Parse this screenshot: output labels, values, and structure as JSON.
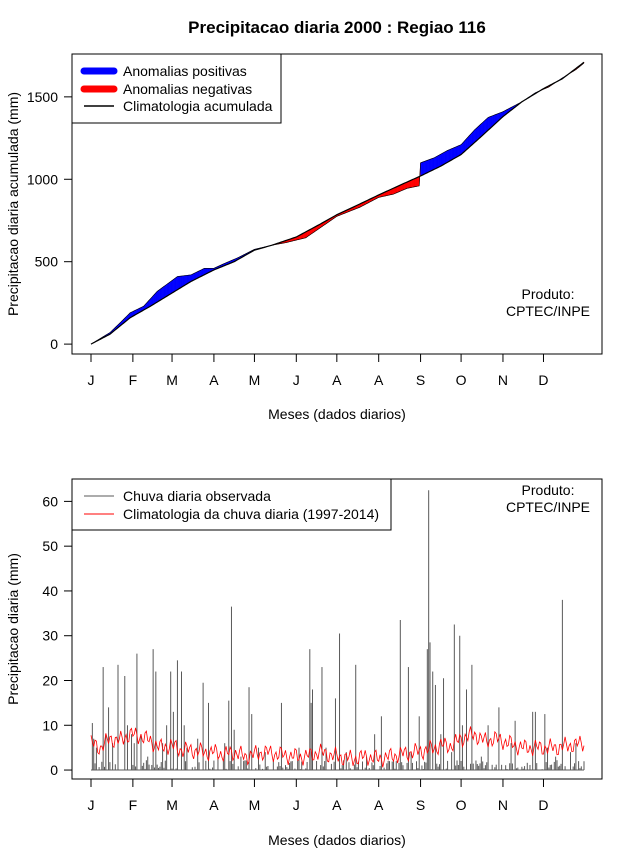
{
  "chart_data": [
    {
      "type": "area",
      "title": "Precipitacao diaria 2000 : Regiao 116",
      "xlabel": "Meses (dados diarios)",
      "ylabel": "Precipitacao diaria acumulada (mm)",
      "ylim": [
        -60,
        1760
      ],
      "yticks": [
        0,
        500,
        1000,
        1500
      ],
      "xlim": [
        1,
        366
      ],
      "month_ticks": [
        {
          "label": "J",
          "day": 1
        },
        {
          "label": "F",
          "day": 32
        },
        {
          "label": "M",
          "day": 61
        },
        {
          "label": "A",
          "day": 92
        },
        {
          "label": "M",
          "day": 122
        },
        {
          "label": "J",
          "day": 153
        },
        {
          "label": "A",
          "day": 183
        },
        {
          "label": "A",
          "day": 214
        },
        {
          "label": "S",
          "day": 245
        },
        {
          "label": "O",
          "day": 275
        },
        {
          "label": "N",
          "day": 306
        },
        {
          "label": "D",
          "day": 336
        }
      ],
      "legend": [
        {
          "label": "Anomalias positivas",
          "color": "#0000ff"
        },
        {
          "label": "Anomalias negativas",
          "color": "#ff0000"
        },
        {
          "label": "Climatologia acumulada",
          "color": "#000000"
        }
      ],
      "annotation": [
        "Produto:",
        "CPTEC/INPE"
      ],
      "climatology_knots": [
        [
          1,
          0
        ],
        [
          15,
          60
        ],
        [
          30,
          160
        ],
        [
          45,
          230
        ],
        [
          61,
          310
        ],
        [
          75,
          380
        ],
        [
          92,
          450
        ],
        [
          107,
          500
        ],
        [
          122,
          570
        ],
        [
          135,
          600
        ],
        [
          153,
          650
        ],
        [
          170,
          725
        ],
        [
          183,
          785
        ],
        [
          200,
          850
        ],
        [
          214,
          905
        ],
        [
          230,
          965
        ],
        [
          245,
          1020
        ],
        [
          260,
          1080
        ],
        [
          275,
          1150
        ],
        [
          290,
          1260
        ],
        [
          306,
          1380
        ],
        [
          320,
          1470
        ],
        [
          336,
          1550
        ],
        [
          350,
          1610
        ],
        [
          366,
          1710
        ]
      ],
      "observed_knots": [
        [
          1,
          0
        ],
        [
          15,
          70
        ],
        [
          22,
          125
        ],
        [
          30,
          190
        ],
        [
          40,
          230
        ],
        [
          50,
          320
        ],
        [
          60,
          380
        ],
        [
          65,
          410
        ],
        [
          75,
          420
        ],
        [
          85,
          460
        ],
        [
          92,
          460
        ],
        [
          100,
          490
        ],
        [
          110,
          525
        ],
        [
          122,
          575
        ],
        [
          135,
          600
        ],
        [
          145,
          615
        ],
        [
          160,
          645
        ],
        [
          183,
          775
        ],
        [
          200,
          830
        ],
        [
          214,
          890
        ],
        [
          225,
          910
        ],
        [
          235,
          945
        ],
        [
          244,
          960
        ],
        [
          245,
          1100
        ],
        [
          255,
          1130
        ],
        [
          265,
          1175
        ],
        [
          275,
          1210
        ],
        [
          285,
          1300
        ],
        [
          295,
          1375
        ],
        [
          306,
          1410
        ],
        [
          320,
          1470
        ],
        [
          330,
          1525
        ],
        [
          340,
          1560
        ],
        [
          350,
          1615
        ],
        [
          360,
          1665
        ],
        [
          366,
          1705
        ]
      ]
    },
    {
      "type": "line",
      "xlabel": "Meses (dados diarios)",
      "ylabel": "Precipitacao diaria (mm)",
      "ylim": [
        -2,
        65
      ],
      "yticks": [
        0,
        10,
        20,
        30,
        40,
        50,
        60
      ],
      "xlim": [
        1,
        366
      ],
      "legend": [
        {
          "label": "Chuva diaria observada",
          "color": "#595959"
        },
        {
          "label": "Climatologia da chuva diaria (1997-2014)",
          "color": "#ff0000"
        }
      ],
      "annotation": [
        "Produto:",
        "CPTEC/INPE"
      ],
      "observed_peaks": [
        [
          2,
          10.5
        ],
        [
          3,
          7
        ],
        [
          5,
          5
        ],
        [
          10,
          23
        ],
        [
          12,
          8
        ],
        [
          14,
          14
        ],
        [
          17,
          6
        ],
        [
          21,
          23.5
        ],
        [
          26,
          21
        ],
        [
          28,
          10
        ],
        [
          31,
          8
        ],
        [
          33,
          6
        ],
        [
          35,
          26
        ],
        [
          38,
          8
        ],
        [
          43,
          3
        ],
        [
          47,
          27
        ],
        [
          49,
          22
        ],
        [
          54,
          6
        ],
        [
          57,
          10
        ],
        [
          60,
          22
        ],
        [
          62,
          13
        ],
        [
          65,
          24.5
        ],
        [
          68,
          22
        ],
        [
          70,
          10
        ],
        [
          72,
          5
        ],
        [
          80,
          7
        ],
        [
          84,
          19.5
        ],
        [
          88,
          15
        ],
        [
          95,
          3
        ],
        [
          100,
          6
        ],
        [
          103,
          15.5
        ],
        [
          105,
          36.5
        ],
        [
          107,
          9
        ],
        [
          112,
          3
        ],
        [
          118,
          18.5
        ],
        [
          120,
          12.5
        ],
        [
          125,
          5
        ],
        [
          130,
          4
        ],
        [
          136,
          2
        ],
        [
          142,
          15
        ],
        [
          150,
          2
        ],
        [
          155,
          5
        ],
        [
          163,
          27
        ],
        [
          164,
          15
        ],
        [
          165,
          18
        ],
        [
          172,
          23
        ],
        [
          175,
          5
        ],
        [
          182,
          16
        ],
        [
          185,
          30.5
        ],
        [
          190,
          4
        ],
        [
          197,
          23.5
        ],
        [
          205,
          3
        ],
        [
          211,
          8
        ],
        [
          216,
          12
        ],
        [
          222,
          2
        ],
        [
          230,
          33.5
        ],
        [
          236,
          23
        ],
        [
          238,
          4
        ],
        [
          244,
          12
        ],
        [
          250,
          27
        ],
        [
          251,
          62.5
        ],
        [
          252,
          28.5
        ],
        [
          254,
          22
        ],
        [
          256,
          19
        ],
        [
          260,
          8
        ],
        [
          262,
          20.5
        ],
        [
          268,
          4
        ],
        [
          270,
          32.5
        ],
        [
          274,
          30
        ],
        [
          276,
          10
        ],
        [
          279,
          18
        ],
        [
          283,
          23.5
        ],
        [
          290,
          3
        ],
        [
          295,
          10
        ],
        [
          303,
          14
        ],
        [
          312,
          6
        ],
        [
          315,
          11
        ],
        [
          328,
          13
        ],
        [
          330,
          13
        ],
        [
          337,
          12.5
        ],
        [
          339,
          5
        ],
        [
          345,
          3
        ],
        [
          350,
          38
        ],
        [
          356,
          4
        ],
        [
          360,
          6
        ]
      ],
      "climatology_knots": [
        [
          1,
          6
        ],
        [
          8,
          5
        ],
        [
          15,
          7
        ],
        [
          22,
          6.5
        ],
        [
          30,
          8
        ],
        [
          38,
          7.5
        ],
        [
          45,
          6.5
        ],
        [
          52,
          5
        ],
        [
          60,
          5.5
        ],
        [
          68,
          4.5
        ],
        [
          75,
          4.5
        ],
        [
          85,
          4
        ],
        [
          92,
          4
        ],
        [
          100,
          3.5
        ],
        [
          107,
          4
        ],
        [
          115,
          3
        ],
        [
          122,
          3.5
        ],
        [
          130,
          4
        ],
        [
          140,
          3.5
        ],
        [
          153,
          3
        ],
        [
          160,
          3
        ],
        [
          170,
          4
        ],
        [
          183,
          3
        ],
        [
          195,
          2.5
        ],
        [
          205,
          3
        ],
        [
          214,
          2.5
        ],
        [
          222,
          3
        ],
        [
          230,
          3.5
        ],
        [
          240,
          4
        ],
        [
          250,
          4.5
        ],
        [
          260,
          5.5
        ],
        [
          268,
          5.5
        ],
        [
          275,
          7
        ],
        [
          285,
          8
        ],
        [
          292,
          6.5
        ],
        [
          300,
          7
        ],
        [
          306,
          6.5
        ],
        [
          315,
          5.5
        ],
        [
          322,
          5
        ],
        [
          336,
          5
        ],
        [
          345,
          5
        ],
        [
          355,
          5.5
        ],
        [
          366,
          6
        ]
      ]
    }
  ]
}
